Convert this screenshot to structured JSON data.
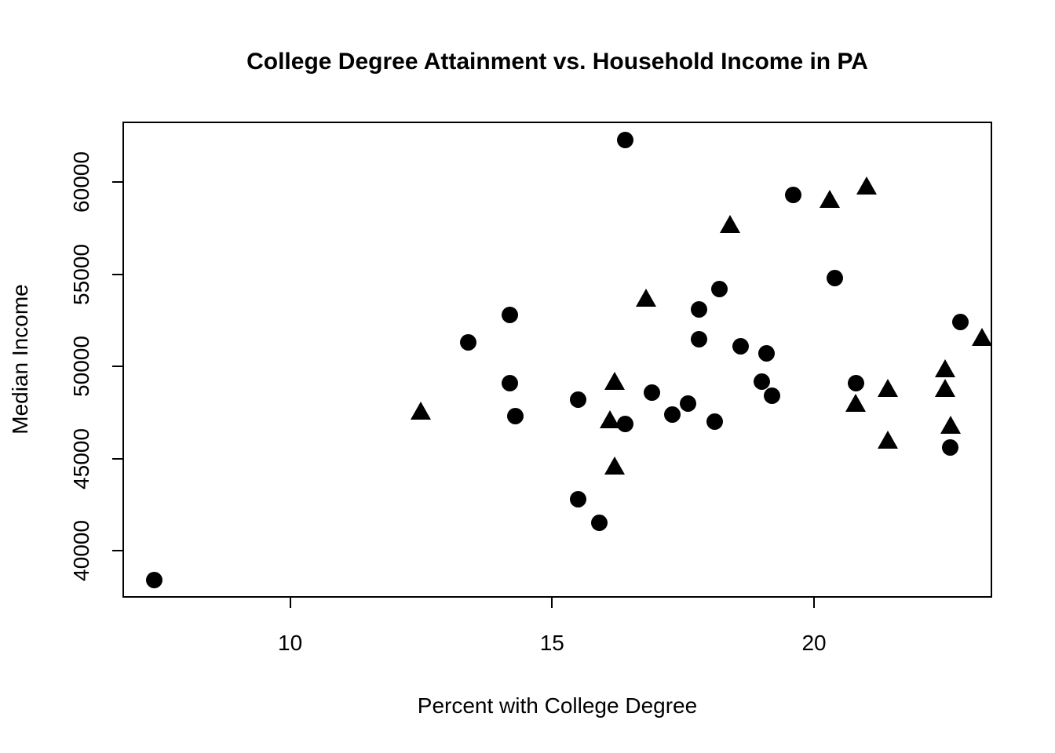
{
  "chart_data": {
    "type": "scatter",
    "title": "College Degree Attainment vs. Household Income in PA",
    "xlabel": "Percent with College Degree",
    "ylabel": "Median Income",
    "xlim": [
      6.8,
      23.4
    ],
    "ylim": [
      37450,
      63300
    ],
    "x_ticks": [
      10,
      15,
      20
    ],
    "y_ticks": [
      40000,
      45000,
      50000,
      55000,
      60000
    ],
    "grid": "off",
    "legend": "none",
    "colors": {
      "points": "#000000",
      "axis": "#000000",
      "background": "#ffffff"
    },
    "series": [
      {
        "name": "filled-circle points",
        "marker": "circle",
        "points": [
          [
            7.4,
            38400
          ],
          [
            13.4,
            51300
          ],
          [
            14.2,
            52800
          ],
          [
            14.2,
            49100
          ],
          [
            14.3,
            47300
          ],
          [
            15.5,
            48200
          ],
          [
            15.5,
            42800
          ],
          [
            15.9,
            41500
          ],
          [
            16.4,
            62300
          ],
          [
            16.4,
            46900
          ],
          [
            16.9,
            48600
          ],
          [
            17.3,
            47400
          ],
          [
            17.6,
            48000
          ],
          [
            17.8,
            53100
          ],
          [
            17.8,
            51500
          ],
          [
            18.1,
            47000
          ],
          [
            18.2,
            54200
          ],
          [
            18.6,
            51100
          ],
          [
            19.0,
            49200
          ],
          [
            19.1,
            50700
          ],
          [
            19.2,
            48400
          ],
          [
            19.6,
            59300
          ],
          [
            20.4,
            54800
          ],
          [
            20.8,
            49100
          ],
          [
            22.6,
            45600
          ],
          [
            22.8,
            52400
          ]
        ]
      },
      {
        "name": "filled-triangle points",
        "marker": "triangle",
        "points": [
          [
            12.5,
            47600
          ],
          [
            16.1,
            47100
          ],
          [
            16.2,
            49200
          ],
          [
            16.2,
            44600
          ],
          [
            16.8,
            53700
          ],
          [
            18.4,
            57700
          ],
          [
            20.3,
            59100
          ],
          [
            20.8,
            48000
          ],
          [
            21.0,
            59800
          ],
          [
            21.4,
            48800
          ],
          [
            21.4,
            46000
          ],
          [
            22.5,
            49900
          ],
          [
            22.5,
            48800
          ],
          [
            22.6,
            46800
          ],
          [
            23.2,
            51600
          ]
        ]
      }
    ]
  }
}
